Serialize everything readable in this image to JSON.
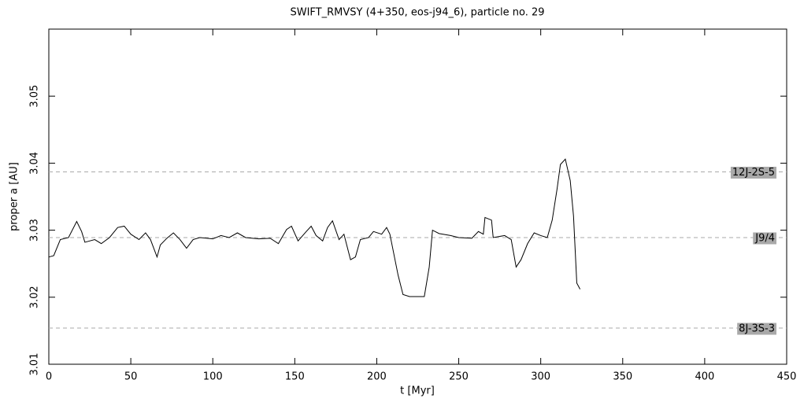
{
  "chart_data": {
    "type": "line",
    "title": "SWIFT_RMVSY (4+350, eos-j94_6), particle no. 29",
    "x_label": "t [Myr]",
    "y_label": "proper a [AU]",
    "xlim": [
      0,
      450
    ],
    "xticks": [
      0,
      50,
      100,
      150,
      200,
      250,
      300,
      350,
      400,
      450
    ],
    "ylim": [
      3.01,
      3.06
    ],
    "yticks": [
      3.01,
      3.02,
      3.03,
      3.04,
      3.05
    ],
    "series": [
      {
        "color": "#000000",
        "x": [
          0,
          3,
          7,
          12,
          17,
          20,
          22,
          28,
          32,
          37,
          42,
          46,
          50,
          55,
          59,
          62,
          66,
          68,
          72,
          76,
          80,
          84,
          88,
          92,
          100,
          105,
          110,
          115,
          120,
          128,
          135,
          140,
          145,
          148,
          152,
          157,
          160,
          163,
          167,
          170,
          173,
          177,
          180,
          184,
          187,
          190,
          195,
          198,
          203,
          206,
          208,
          213,
          216,
          220,
          229,
          232,
          234,
          238,
          245,
          250,
          258,
          262,
          265,
          266,
          270,
          271,
          278,
          282,
          285,
          288,
          292,
          296,
          300,
          304,
          307,
          310,
          312,
          315,
          318,
          320,
          322,
          324
        ],
        "values": [
          3.026,
          3.0262,
          3.0286,
          3.0289,
          3.0313,
          3.0298,
          3.0282,
          3.0286,
          3.028,
          3.0289,
          3.0304,
          3.0306,
          3.0294,
          3.0286,
          3.0296,
          3.0286,
          3.026,
          3.0278,
          3.0288,
          3.0296,
          3.0286,
          3.0273,
          3.0286,
          3.0289,
          3.0287,
          3.0292,
          3.0289,
          3.0296,
          3.0289,
          3.0287,
          3.0288,
          3.028,
          3.0301,
          3.0306,
          3.0284,
          3.0298,
          3.0306,
          3.0292,
          3.0284,
          3.0304,
          3.0314,
          3.0286,
          3.0294,
          3.0256,
          3.026,
          3.0286,
          3.0289,
          3.0298,
          3.0294,
          3.0304,
          3.0294,
          3.0233,
          3.0204,
          3.0201,
          3.0201,
          3.0245,
          3.03,
          3.0295,
          3.0292,
          3.0289,
          3.0288,
          3.0298,
          3.0294,
          3.0319,
          3.0315,
          3.0289,
          3.0292,
          3.0286,
          3.0245,
          3.0256,
          3.028,
          3.0296,
          3.0292,
          3.0289,
          3.0315,
          3.0362,
          3.0398,
          3.0406,
          3.0374,
          3.0321,
          3.0221,
          3.0212
        ]
      }
    ],
    "reference_lines": [
      {
        "value": 3.0387,
        "label": "12J-2S-5"
      },
      {
        "value": 3.0289,
        "label": "J9/4"
      },
      {
        "value": 3.0154,
        "label": "8J-3S-3"
      }
    ],
    "reference_color": "#aaaaaa",
    "label_box_color": "#a9a9a9"
  }
}
